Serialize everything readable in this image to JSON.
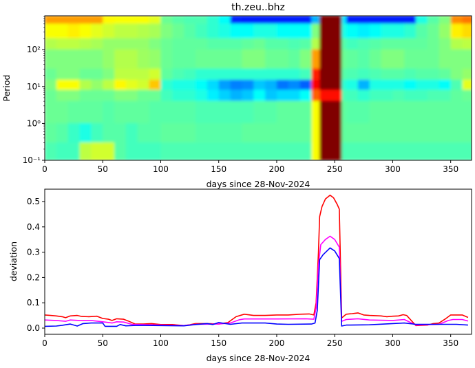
{
  "chart_data": [
    {
      "type": "heatmap",
      "title": "th.zeu..bhz",
      "xlabel": "days since 28-Nov-2024",
      "ylabel": "Period",
      "xlim": [
        0,
        368
      ],
      "ylim": [
        0.1,
        830
      ],
      "yscale": "log",
      "colormap": "jet",
      "grid": false,
      "xticks": [
        0,
        50,
        100,
        150,
        200,
        250,
        300,
        350
      ],
      "xtick_labels": [
        "0",
        "50",
        "100",
        "150",
        "200",
        "250",
        "300",
        "350"
      ],
      "yticks": [
        0.1,
        1,
        10,
        100
      ],
      "ytick_labels": [
        "10⁻¹",
        "10⁰",
        "10¹",
        "10²"
      ],
      "x_edges": [
        0,
        10,
        20,
        30,
        40,
        50,
        60,
        70,
        80,
        90,
        100,
        110,
        120,
        130,
        140,
        150,
        160,
        170,
        180,
        190,
        200,
        210,
        220,
        230,
        237,
        256,
        260,
        270,
        280,
        290,
        300,
        310,
        320,
        330,
        340,
        350,
        360,
        370
      ],
      "period_edges": [
        830,
        500,
        200,
        100,
        30,
        15,
        8,
        4,
        1,
        0.3,
        0.1
      ],
      "z": [
        [
          0.72,
          0.72,
          0.72,
          0.72,
          0.72,
          0.63,
          0.62,
          0.62,
          0.62,
          0.6,
          0.48,
          0.46,
          0.45,
          0.45,
          0.42,
          0.38,
          0.16,
          0.15,
          0.15,
          0.15,
          0.15,
          0.15,
          0.15,
          0.3,
          1.0,
          0.35,
          0.15,
          0.15,
          0.15,
          0.15,
          0.15,
          0.15,
          0.4,
          0.46,
          0.5,
          0.74,
          0.76
        ],
        [
          0.62,
          0.62,
          0.64,
          0.62,
          0.6,
          0.58,
          0.56,
          0.56,
          0.55,
          0.54,
          0.5,
          0.48,
          0.46,
          0.44,
          0.42,
          0.4,
          0.38,
          0.38,
          0.4,
          0.4,
          0.38,
          0.38,
          0.38,
          0.5,
          1.0,
          0.4,
          0.38,
          0.36,
          0.38,
          0.4,
          0.4,
          0.42,
          0.46,
          0.48,
          0.52,
          0.64,
          0.66
        ],
        [
          0.55,
          0.56,
          0.56,
          0.55,
          0.54,
          0.52,
          0.52,
          0.52,
          0.52,
          0.5,
          0.48,
          0.47,
          0.47,
          0.47,
          0.46,
          0.46,
          0.46,
          0.47,
          0.48,
          0.46,
          0.46,
          0.45,
          0.46,
          0.55,
          1.0,
          0.46,
          0.44,
          0.45,
          0.46,
          0.47,
          0.47,
          0.47,
          0.47,
          0.48,
          0.5,
          0.55,
          0.56
        ],
        [
          0.5,
          0.5,
          0.5,
          0.5,
          0.5,
          0.52,
          0.55,
          0.55,
          0.53,
          0.52,
          0.48,
          0.47,
          0.47,
          0.48,
          0.48,
          0.48,
          0.48,
          0.5,
          0.5,
          0.48,
          0.48,
          0.47,
          0.5,
          0.72,
          1.0,
          0.48,
          0.47,
          0.46,
          0.48,
          0.5,
          0.5,
          0.48,
          0.48,
          0.48,
          0.5,
          0.5,
          0.5
        ],
        [
          0.48,
          0.5,
          0.5,
          0.48,
          0.48,
          0.5,
          0.56,
          0.56,
          0.56,
          0.58,
          0.47,
          0.45,
          0.44,
          0.42,
          0.42,
          0.42,
          0.42,
          0.42,
          0.42,
          0.42,
          0.42,
          0.42,
          0.44,
          0.85,
          1.0,
          0.46,
          0.45,
          0.44,
          0.45,
          0.46,
          0.46,
          0.45,
          0.46,
          0.46,
          0.47,
          0.5,
          0.52
        ],
        [
          0.5,
          0.62,
          0.62,
          0.55,
          0.52,
          0.56,
          0.63,
          0.6,
          0.58,
          0.68,
          0.42,
          0.4,
          0.4,
          0.38,
          0.34,
          0.28,
          0.25,
          0.26,
          0.32,
          0.3,
          0.24,
          0.26,
          0.22,
          0.88,
          1.0,
          0.42,
          0.4,
          0.3,
          0.4,
          0.4,
          0.4,
          0.38,
          0.4,
          0.4,
          0.38,
          0.45,
          0.6
        ],
        [
          0.48,
          0.5,
          0.5,
          0.48,
          0.48,
          0.48,
          0.5,
          0.5,
          0.48,
          0.48,
          0.44,
          0.42,
          0.42,
          0.4,
          0.36,
          0.33,
          0.3,
          0.32,
          0.38,
          0.32,
          0.34,
          0.34,
          0.38,
          0.78,
          0.86,
          0.45,
          0.44,
          0.42,
          0.44,
          0.44,
          0.45,
          0.44,
          0.44,
          0.45,
          0.45,
          0.47,
          0.48
        ],
        [
          0.48,
          0.48,
          0.47,
          0.47,
          0.47,
          0.46,
          0.47,
          0.47,
          0.47,
          0.46,
          0.46,
          0.46,
          0.46,
          0.45,
          0.45,
          0.45,
          0.45,
          0.45,
          0.46,
          0.46,
          0.47,
          0.47,
          0.47,
          0.62,
          1.0,
          0.47,
          0.46,
          0.46,
          0.47,
          0.47,
          0.47,
          0.47,
          0.47,
          0.47,
          0.47,
          0.47,
          0.47
        ],
        [
          0.47,
          0.46,
          0.43,
          0.4,
          0.44,
          0.46,
          0.46,
          0.44,
          0.46,
          0.46,
          0.47,
          0.47,
          0.47,
          0.46,
          0.46,
          0.46,
          0.46,
          0.47,
          0.47,
          0.47,
          0.47,
          0.47,
          0.47,
          0.62,
          1.0,
          0.47,
          0.47,
          0.47,
          0.47,
          0.47,
          0.47,
          0.47,
          0.47,
          0.47,
          0.47,
          0.47,
          0.47
        ],
        [
          0.45,
          0.44,
          0.44,
          0.56,
          0.58,
          0.58,
          0.46,
          0.44,
          0.44,
          0.44,
          0.45,
          0.45,
          0.45,
          0.45,
          0.45,
          0.45,
          0.45,
          0.45,
          0.45,
          0.45,
          0.45,
          0.45,
          0.45,
          0.62,
          1.0,
          0.45,
          0.45,
          0.45,
          0.45,
          0.45,
          0.45,
          0.45,
          0.45,
          0.45,
          0.45,
          0.45,
          0.45
        ]
      ]
    },
    {
      "type": "line",
      "xlabel": "days since 28-Nov-2024",
      "ylabel": "deviation",
      "xlim": [
        0,
        368
      ],
      "ylim": [
        -0.0245,
        0.549
      ],
      "grid": false,
      "xticks": [
        0,
        50,
        100,
        150,
        200,
        250,
        300,
        350
      ],
      "xtick_labels": [
        "0",
        "50",
        "100",
        "150",
        "200",
        "250",
        "300",
        "350"
      ],
      "yticks": [
        0.0,
        0.1,
        0.2,
        0.3,
        0.4,
        0.5
      ],
      "ytick_labels": [
        "0.0",
        "0.1",
        "0.2",
        "0.3",
        "0.4",
        "0.5"
      ],
      "series": [
        {
          "color": "#ff0000",
          "points": [
            [
              0,
              0.052
            ],
            [
              5,
              0.05
            ],
            [
              10,
              0.048
            ],
            [
              15,
              0.045
            ],
            [
              18,
              0.041
            ],
            [
              22,
              0.048
            ],
            [
              28,
              0.05
            ],
            [
              32,
              0.046
            ],
            [
              38,
              0.045
            ],
            [
              45,
              0.047
            ],
            [
              50,
              0.038
            ],
            [
              55,
              0.035
            ],
            [
              58,
              0.03
            ],
            [
              62,
              0.037
            ],
            [
              68,
              0.035
            ],
            [
              72,
              0.028
            ],
            [
              78,
              0.016
            ],
            [
              85,
              0.016
            ],
            [
              92,
              0.018
            ],
            [
              100,
              0.014
            ],
            [
              110,
              0.014
            ],
            [
              120,
              0.01
            ],
            [
              125,
              0.013
            ],
            [
              130,
              0.018
            ],
            [
              140,
              0.018
            ],
            [
              150,
              0.016
            ],
            [
              158,
              0.022
            ],
            [
              165,
              0.045
            ],
            [
              172,
              0.055
            ],
            [
              180,
              0.05
            ],
            [
              190,
              0.05
            ],
            [
              200,
              0.052
            ],
            [
              210,
              0.052
            ],
            [
              220,
              0.055
            ],
            [
              228,
              0.056
            ],
            [
              232,
              0.052
            ],
            [
              234,
              0.1
            ],
            [
              236,
              0.3
            ],
            [
              237,
              0.44
            ],
            [
              239,
              0.48
            ],
            [
              242,
              0.51
            ],
            [
              246,
              0.525
            ],
            [
              249,
              0.515
            ],
            [
              252,
              0.49
            ],
            [
              254,
              0.47
            ],
            [
              256,
              0.04
            ],
            [
              260,
              0.055
            ],
            [
              265,
              0.057
            ],
            [
              270,
              0.06
            ],
            [
              275,
              0.052
            ],
            [
              280,
              0.05
            ],
            [
              290,
              0.048
            ],
            [
              295,
              0.045
            ],
            [
              300,
              0.047
            ],
            [
              305,
              0.048
            ],
            [
              309,
              0.053
            ],
            [
              312,
              0.05
            ],
            [
              320,
              0.01
            ],
            [
              330,
              0.012
            ],
            [
              335,
              0.018
            ],
            [
              340,
              0.02
            ],
            [
              345,
              0.035
            ],
            [
              350,
              0.052
            ],
            [
              360,
              0.052
            ],
            [
              365,
              0.042
            ]
          ]
        },
        {
          "color": "#ff00ff",
          "points": [
            [
              0,
              0.032
            ],
            [
              10,
              0.03
            ],
            [
              18,
              0.027
            ],
            [
              22,
              0.032
            ],
            [
              30,
              0.03
            ],
            [
              40,
              0.03
            ],
            [
              50,
              0.025
            ],
            [
              58,
              0.02
            ],
            [
              62,
              0.025
            ],
            [
              68,
              0.024
            ],
            [
              75,
              0.015
            ],
            [
              100,
              0.012
            ],
            [
              120,
              0.01
            ],
            [
              130,
              0.015
            ],
            [
              150,
              0.016
            ],
            [
              160,
              0.02
            ],
            [
              168,
              0.033
            ],
            [
              172,
              0.036
            ],
            [
              200,
              0.036
            ],
            [
              225,
              0.037
            ],
            [
              232,
              0.035
            ],
            [
              234,
              0.08
            ],
            [
              236,
              0.25
            ],
            [
              238,
              0.33
            ],
            [
              242,
              0.35
            ],
            [
              246,
              0.363
            ],
            [
              250,
              0.35
            ],
            [
              254,
              0.32
            ],
            [
              256,
              0.027
            ],
            [
              260,
              0.034
            ],
            [
              270,
              0.037
            ],
            [
              280,
              0.032
            ],
            [
              300,
              0.03
            ],
            [
              310,
              0.034
            ],
            [
              320,
              0.012
            ],
            [
              340,
              0.015
            ],
            [
              348,
              0.03
            ],
            [
              352,
              0.034
            ],
            [
              360,
              0.034
            ],
            [
              365,
              0.028
            ]
          ]
        },
        {
          "color": "#0000ff",
          "points": [
            [
              0,
              0.007
            ],
            [
              10,
              0.008
            ],
            [
              15,
              0.011
            ],
            [
              22,
              0.016
            ],
            [
              28,
              0.008
            ],
            [
              33,
              0.018
            ],
            [
              40,
              0.02
            ],
            [
              50,
              0.02
            ],
            [
              52,
              0.007
            ],
            [
              62,
              0.007
            ],
            [
              65,
              0.014
            ],
            [
              70,
              0.009
            ],
            [
              80,
              0.011
            ],
            [
              100,
              0.01
            ],
            [
              120,
              0.009
            ],
            [
              130,
              0.014
            ],
            [
              140,
              0.018
            ],
            [
              145,
              0.014
            ],
            [
              150,
              0.022
            ],
            [
              160,
              0.015
            ],
            [
              170,
              0.02
            ],
            [
              190,
              0.02
            ],
            [
              200,
              0.016
            ],
            [
              210,
              0.015
            ],
            [
              230,
              0.016
            ],
            [
              233,
              0.02
            ],
            [
              235,
              0.07
            ],
            [
              237,
              0.27
            ],
            [
              240,
              0.29
            ],
            [
              246,
              0.317
            ],
            [
              250,
              0.305
            ],
            [
              254,
              0.275
            ],
            [
              256,
              0.008
            ],
            [
              260,
              0.012
            ],
            [
              280,
              0.013
            ],
            [
              300,
              0.018
            ],
            [
              310,
              0.02
            ],
            [
              320,
              0.015
            ],
            [
              340,
              0.015
            ],
            [
              355,
              0.015
            ],
            [
              365,
              0.012
            ]
          ]
        }
      ]
    }
  ]
}
